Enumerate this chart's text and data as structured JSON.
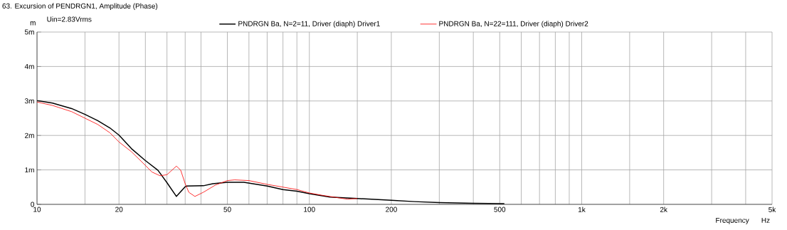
{
  "chart_data": {
    "type": "line",
    "title": "63. Excursion of PENDRGN1, Amplitude (Phase)",
    "subtitle": "Uin=2.83Vrms",
    "xlabel": "Frequency",
    "ylabel": "m",
    "annotations": [
      "Hz"
    ],
    "log": "x",
    "grid": true,
    "legend": "top",
    "marker": "none",
    "line_style": "solid",
    "xlim": [
      10,
      5000
    ],
    "ylim": [
      0,
      5
    ],
    "xticks": [
      10,
      {
        "value": 15,
        "label": null
      },
      20,
      {
        "value": 25,
        "label": null
      },
      {
        "value": 30,
        "label": null
      },
      {
        "value": 35,
        "label": null
      },
      {
        "value": 40,
        "label": null
      },
      50,
      {
        "value": 60,
        "label": null
      },
      {
        "value": 70,
        "label": null
      },
      {
        "value": 80,
        "label": null
      },
      {
        "value": 90,
        "label": null
      },
      100,
      {
        "value": 150,
        "label": null
      },
      200,
      {
        "value": 300,
        "label": null
      },
      {
        "value": 400,
        "label": null
      },
      500,
      {
        "value": 600,
        "label": null
      },
      {
        "value": 700,
        "label": null
      },
      {
        "value": 800,
        "label": null
      },
      {
        "value": 900,
        "label": null
      },
      {
        "value": 1000,
        "label": "1k"
      },
      {
        "value": 1500,
        "label": null
      },
      {
        "value": 2000,
        "label": "2k"
      },
      {
        "value": 3000,
        "label": null
      },
      {
        "value": 4000,
        "label": null
      },
      {
        "value": 5000,
        "label": "5k"
      }
    ],
    "yticks": [
      0,
      {
        "value": 1,
        "label": "1m"
      },
      {
        "value": 2,
        "label": "2m"
      },
      {
        "value": 3,
        "label": "3m"
      },
      {
        "value": 4,
        "label": "4m"
      },
      {
        "value": 5,
        "label": "5m"
      }
    ],
    "series": [
      {
        "name": "PNDRGN Ba, N=2=11, Driver (diaph) Driver1",
        "color": "#000000",
        "x": [
          10,
          11.4,
          13.4,
          15,
          16.7,
          18.5,
          20,
          22.2,
          25,
          27.8,
          30,
          32.5,
          35,
          35.4,
          40.8,
          44.2,
          50,
          57.5,
          70,
          80,
          90,
          100,
          119,
          150,
          200,
          243,
          300,
          400,
          520
        ],
        "values": [
          3.01,
          2.94,
          2.78,
          2.61,
          2.43,
          2.22,
          2.01,
          1.62,
          1.27,
          0.99,
          0.63,
          0.23,
          0.51,
          0.53,
          0.54,
          0.6,
          0.64,
          0.64,
          0.53,
          0.43,
          0.38,
          0.31,
          0.21,
          0.17,
          0.12,
          0.08,
          0.05,
          0.03,
          0.02
        ]
      },
      {
        "name": "PNDRGN Ba, N=22=111, Driver (diaph) Driver2",
        "color": "#ff0000",
        "x": [
          10,
          11.4,
          13.4,
          15,
          16.7,
          18.5,
          20,
          22.2,
          25,
          26.4,
          28.3,
          30,
          32.5,
          33.7,
          35,
          36.1,
          38,
          40.8,
          45.2,
          50,
          53.2,
          60,
          70,
          80,
          90,
          100,
          112,
          138,
          150
        ],
        "values": [
          2.97,
          2.87,
          2.69,
          2.5,
          2.32,
          2.08,
          1.81,
          1.53,
          1.13,
          0.94,
          0.83,
          0.86,
          1.11,
          0.99,
          0.6,
          0.35,
          0.23,
          0.35,
          0.56,
          0.69,
          0.71,
          0.69,
          0.58,
          0.5,
          0.43,
          0.33,
          0.26,
          0.15,
          0.17
        ]
      }
    ]
  }
}
